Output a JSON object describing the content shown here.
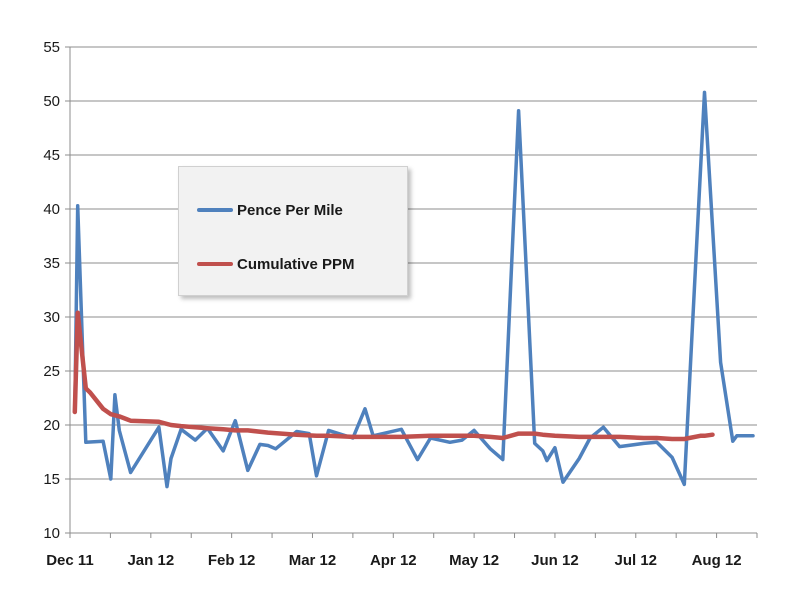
{
  "chart_data": {
    "type": "line",
    "ylim": [
      10,
      55
    ],
    "yticks": [
      10,
      15,
      20,
      25,
      30,
      35,
      40,
      45,
      50,
      55
    ],
    "xlim": [
      0,
      17
    ],
    "xticks": [
      {
        "label": "Dec 11",
        "x": 0
      },
      {
        "label": "Jan 12",
        "x": 2
      },
      {
        "label": "Feb 12",
        "x": 4
      },
      {
        "label": "Mar 12",
        "x": 6
      },
      {
        "label": "Apr 12",
        "x": 8
      },
      {
        "label": "May 12",
        "x": 10
      },
      {
        "label": "Jun 12",
        "x": 12
      },
      {
        "label": "Jul 12",
        "x": 14
      },
      {
        "label": "Aug 12",
        "x": 16
      }
    ],
    "grid": true,
    "legend": {
      "position": "upper-left, inside plot",
      "framed": true
    },
    "series": [
      {
        "name": "Pence Per Mile",
        "color": "#4f81bd",
        "x": [
          0.12,
          0.19,
          0.39,
          0.82,
          1.01,
          1.11,
          1.22,
          1.5,
          2.2,
          2.4,
          2.5,
          2.75,
          3.1,
          3.4,
          3.79,
          4.09,
          4.4,
          4.7,
          4.9,
          5.09,
          5.61,
          5.92,
          6.1,
          6.4,
          7.0,
          7.3,
          7.5,
          8.2,
          8.6,
          8.92,
          9.4,
          9.7,
          10.0,
          10.4,
          10.71,
          11.1,
          11.5,
          11.7,
          11.8,
          12.0,
          12.2,
          12.6,
          12.87,
          13.2,
          13.6,
          14.2,
          14.52,
          14.9,
          15.2,
          15.7,
          16.1,
          16.4,
          16.5,
          16.6,
          16.7,
          16.9
        ],
        "y": [
          21.2,
          40.3,
          18.4,
          18.5,
          15.0,
          22.8,
          19.5,
          15.6,
          19.8,
          14.3,
          16.9,
          19.6,
          18.6,
          19.7,
          17.6,
          20.4,
          15.8,
          18.2,
          18.1,
          17.8,
          19.4,
          19.2,
          15.3,
          19.5,
          18.8,
          21.5,
          19.0,
          19.6,
          16.8,
          18.8,
          18.4,
          18.6,
          19.5,
          17.8,
          16.8,
          49.1,
          18.3,
          17.6,
          16.7,
          17.9,
          14.7,
          16.9,
          18.8,
          19.8,
          18.0,
          18.3,
          18.4,
          17.0,
          14.5,
          50.8,
          25.8,
          18.5,
          19.0,
          19.0,
          19.0,
          19.0
        ]
      },
      {
        "name": "Cumulative PPM",
        "color": "#c0504d",
        "x": [
          0.12,
          0.19,
          0.39,
          0.5,
          0.82,
          1.01,
          1.22,
          1.5,
          2.2,
          2.5,
          2.75,
          3.1,
          3.4,
          3.79,
          4.09,
          4.4,
          4.9,
          5.61,
          6.1,
          6.4,
          7.0,
          7.5,
          8.2,
          8.92,
          9.4,
          9.7,
          10.0,
          10.4,
          10.71,
          11.1,
          11.5,
          11.7,
          12.0,
          12.6,
          13.2,
          13.6,
          14.2,
          14.52,
          14.9,
          15.2,
          15.6,
          15.7,
          15.9
        ],
        "y": [
          21.2,
          30.4,
          23.4,
          23.0,
          21.5,
          21.0,
          20.8,
          20.4,
          20.3,
          20.0,
          19.9,
          19.8,
          19.7,
          19.6,
          19.5,
          19.5,
          19.3,
          19.1,
          19.0,
          19.0,
          18.9,
          18.9,
          18.9,
          19.0,
          19.0,
          19.0,
          19.0,
          18.9,
          18.8,
          19.2,
          19.2,
          19.1,
          19.0,
          18.9,
          18.9,
          18.9,
          18.8,
          18.8,
          18.7,
          18.7,
          19.0,
          19.0,
          19.1
        ]
      }
    ]
  }
}
